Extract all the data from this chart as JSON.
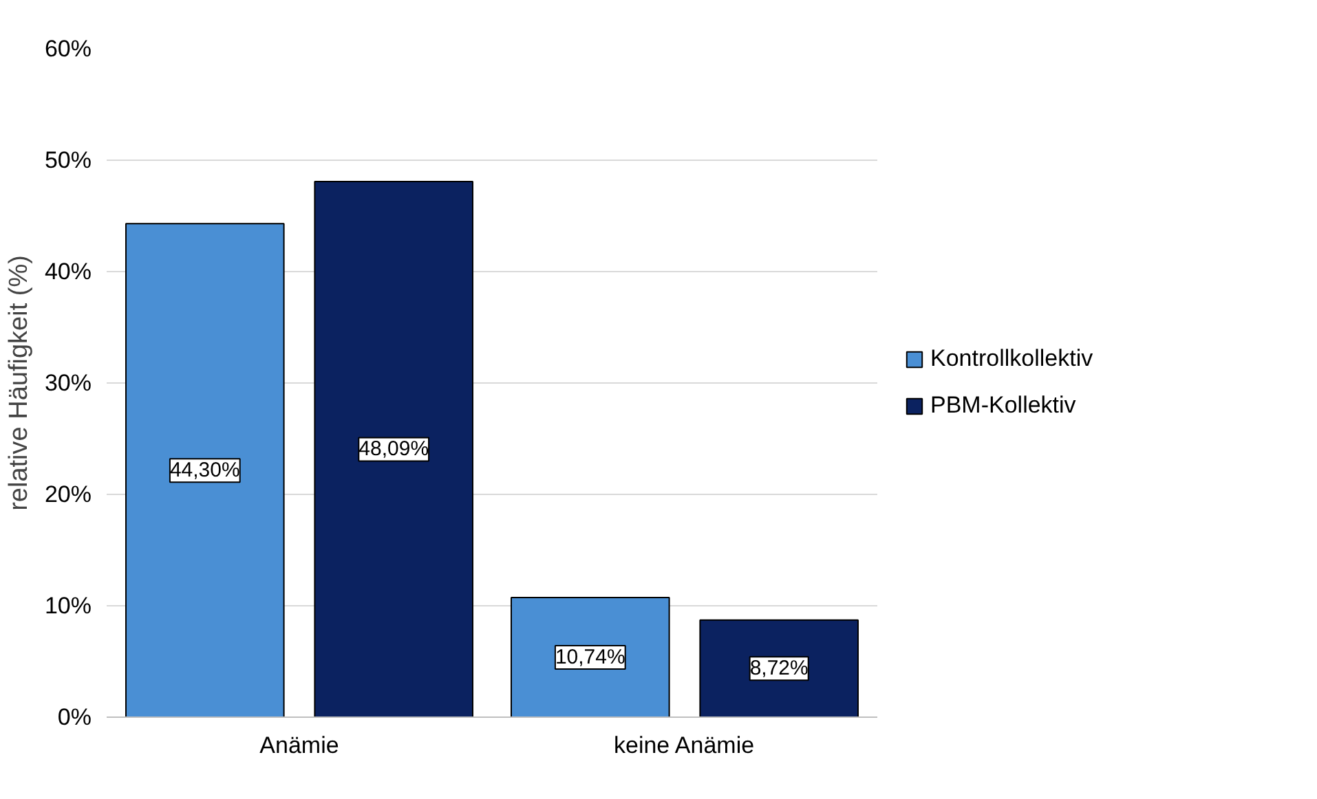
{
  "chart_data": {
    "type": "bar",
    "ylabel": "relative Häufigkeit (%)",
    "categories": [
      "Anämie",
      "keine Anämie"
    ],
    "series": [
      {
        "name": "Kontrollkollektiv",
        "color": "#4a8fd4",
        "values": [
          44.3,
          10.74
        ],
        "value_labels": [
          "44,30%",
          "10,74%"
        ]
      },
      {
        "name": "PBM-Kollektiv",
        "color": "#0b2260",
        "values": [
          48.09,
          8.72
        ],
        "value_labels": [
          "48,09%",
          "8,72%"
        ]
      }
    ],
    "ylim": [
      0,
      60
    ],
    "yticks": [
      {
        "value": 0,
        "label": "0%"
      },
      {
        "value": 10,
        "label": "10%"
      },
      {
        "value": 20,
        "label": "20%"
      },
      {
        "value": 30,
        "label": "30%"
      },
      {
        "value": 40,
        "label": "40%"
      },
      {
        "value": 50,
        "label": "50%"
      },
      {
        "value": 60,
        "label": "60%"
      }
    ],
    "grid": "y",
    "legend": "right"
  }
}
